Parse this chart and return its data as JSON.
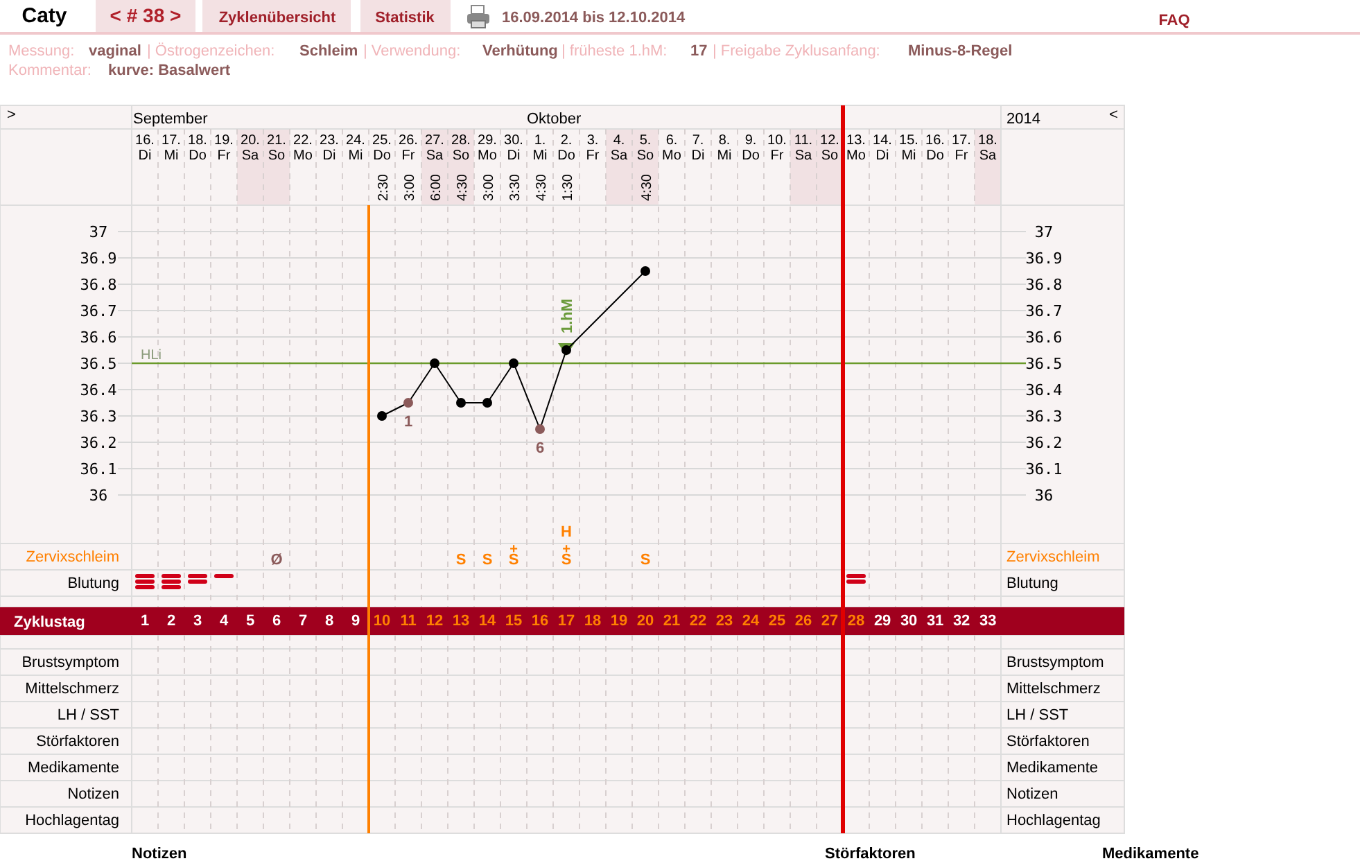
{
  "chart_data": {
    "type": "line",
    "categories": [
      "16.\nDi",
      "17.\nMi",
      "18.\nDo",
      "19.\nFr",
      "20.\nSa",
      "21.\nSo",
      "22.\nMo",
      "23.\nDi",
      "24.\nMi",
      "25.\nDo",
      "26.\nFr",
      "27.\nSa",
      "28.\nSo",
      "29.\nMo",
      "30.\nDi",
      "1.\nMi",
      "2.\nDo",
      "3.\nFr",
      "4.\nSa",
      "5.\nSo",
      "6.\nMo",
      "7.\nDi",
      "8.\nMi",
      "9.\nDo",
      "10.\nFr",
      "11.\nSa",
      "12.\nSo",
      "13.\nMo",
      "14.\nDi",
      "15.\nMi",
      "16.\nDo",
      "17.\nFr",
      "18.\nSa"
    ],
    "series": [
      {
        "color": "#000000",
        "values": [
          null,
          null,
          null,
          null,
          null,
          null,
          null,
          null,
          null,
          36.3,
          36.35,
          36.5,
          36.35,
          36.35,
          36.5,
          36.25,
          36.55,
          null,
          null,
          36.85,
          null,
          null,
          null,
          null,
          null,
          null,
          null,
          null,
          null,
          null,
          null,
          null,
          null
        ],
        "colors": [
          null,
          null,
          null,
          null,
          null,
          null,
          null,
          null,
          null,
          "#000000",
          "#8b5a5a",
          "#000000",
          "#000000",
          "#000000",
          "#000000",
          "#8b5a5a",
          "#000000",
          null,
          null,
          "#000000",
          null,
          null,
          null,
          null,
          null,
          null,
          null,
          null,
          null,
          null,
          null,
          null,
          null
        ]
      }
    ],
    "ylim": [
      36,
      37
    ],
    "yticks": [
      36,
      36.1,
      36.2,
      36.3,
      36.4,
      36.5,
      36.6,
      36.7,
      36.8,
      36.9,
      37
    ],
    "y2lim": [
      36,
      37
    ],
    "y2ticks": [
      36,
      36.1,
      36.2,
      36.3,
      36.4,
      36.5,
      36.6,
      36.7,
      36.8,
      36.9,
      37
    ],
    "x2lim": [
      -4.5,
      38.18
    ],
    "x2ticks": [
      1,
      2,
      3,
      4,
      5,
      6,
      7,
      8,
      9,
      10,
      11,
      12,
      13,
      14,
      15,
      16,
      17,
      18,
      19,
      20,
      21,
      22,
      23,
      24,
      25,
      26,
      27,
      28,
      29,
      30,
      31,
      32,
      33
    ],
    "grid": true,
    "marker": "circle",
    "line_style": "solid",
    "ref_lines": [
      {
        "axis": "y",
        "value": 36.5,
        "label": "HLi",
        "color": "#6a9a2a"
      },
      {
        "axis": "x",
        "value": "25.\nDo",
        "color": "#ff8000"
      },
      {
        "axis": "x",
        "value": "13.\nMo",
        "color": "#e00000"
      }
    ],
    "annotations": [
      "Caty",
      "< # 38 >",
      "Zyklenübersicht",
      "Statistik",
      "16.09.2014 bis 12.10.2014",
      "FAQ",
      "Messung:",
      "vaginal",
      "| Östrogenzeichen:",
      "Schleim",
      "| Verwendung:",
      "Verhütung",
      "| früheste 1.hM:",
      "17",
      "| Freigabe Zyklusanfang:",
      "Minus-8-Regel",
      "Kommentar:",
      "kurve: Basalwert",
      ">",
      "<",
      "September",
      "Oktober",
      "2014",
      "Zervixschleim",
      "Blutung",
      "Zyklustag",
      "Brustsymptom",
      "Mittelschmerz",
      "LH / SST",
      "Störfaktoren",
      "Medikamente",
      "Notizen",
      "Hochlagentag",
      "Notizen",
      "Störfaktoren",
      "Medikamente",
      "2:30",
      "3:00",
      "6:00",
      "4:30",
      "3:00",
      "3:30",
      "4:30",
      "1:30",
      "4:30",
      "Ø",
      "S",
      "S",
      "+",
      "S",
      "+",
      "S",
      "S",
      "H",
      {
        "text": "1",
        "x": "26.\nFr",
        "y": 36.35
      },
      {
        "text": "6",
        "x": "1.\nMi",
        "y": 36.25
      },
      {
        "text": "1.hM",
        "x": "2.\nDo",
        "y": 36.55
      }
    ]
  }
}
